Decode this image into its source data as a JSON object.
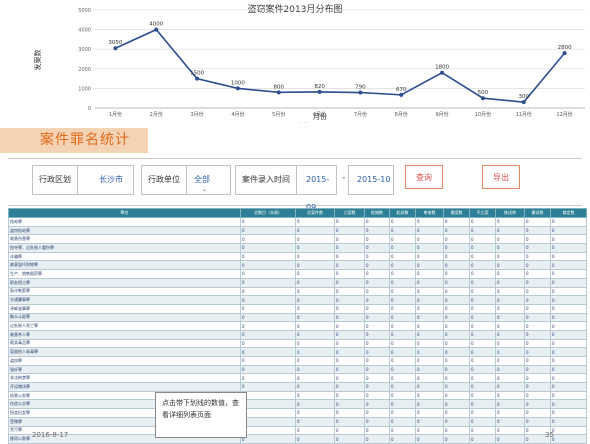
{
  "chart_data": {
    "type": "line",
    "title": "盗窃案件2013月分布图",
    "xlabel": "月份",
    "ylabel": "发案数",
    "categories": [
      "1月份",
      "2月份",
      "3月份",
      "4月份",
      "5月份",
      "6月份",
      "7月份",
      "8月份",
      "9月份",
      "10月份",
      "11月份",
      "12月份"
    ],
    "series": [
      {
        "name": "案件",
        "values": [
          3050,
          4000,
          1500,
          1000,
          800,
          820,
          790,
          670,
          1800,
          500,
          300,
          2800
        ]
      }
    ],
    "ylim": [
      0,
      5000
    ],
    "yticks": [
      0,
      1000,
      2000,
      3000,
      4000,
      5000
    ],
    "legend": "bottom-center",
    "credit": "Highcharts.com",
    "color": "#2e4d8c"
  },
  "section_title": "案件罪名统计",
  "filters": {
    "district_label": "行政区划",
    "district_value": "长沙市",
    "unit_label": "行政单位",
    "unit_value": "全部",
    "time_label": "案件录入时间",
    "start_date": "2015-09",
    "separator": "-",
    "end_date": "2015-10",
    "query_button": "查询",
    "export_button": "导出"
  },
  "table": {
    "columns": [
      "罪名",
      "总数目（本周）",
      "总案件数",
      "立案数",
      "批捕数",
      "起诉数",
      "审查数",
      "撤案数",
      "不立案",
      "移送审",
      "撤诉数",
      "裁定数"
    ],
    "rows": [
      {
        "name": "抢劫罪",
        "values": [
          "0",
          "0",
          "0",
          "0",
          "0",
          "0",
          "0",
          "0",
          "0",
          "0",
          "0"
        ]
      },
      {
        "name": "盗窃抢劫罪",
        "values": [
          "0",
          "0",
          "0",
          "0",
          "0",
          "0",
          "0",
          "0",
          "0",
          "0",
          "0"
        ]
      },
      {
        "name": "故意伤害罪",
        "values": [
          "0",
          "0",
          "0",
          "0",
          "0",
          "0",
          "0",
          "0",
          "0",
          "0",
          "0"
        ]
      },
      {
        "name": "抢夺罪、过失致人重伤罪",
        "values": [
          "0",
          "0",
          "0",
          "0",
          "0",
          "0",
          "0",
          "0",
          "0",
          "0",
          "0"
        ]
      },
      {
        "name": "诈骗罪",
        "values": [
          "0",
          "0",
          "0",
          "0",
          "0",
          "0",
          "0",
          "0",
          "0",
          "0",
          "0"
        ]
      },
      {
        "name": "故意毁坏财物罪",
        "values": [
          "0",
          "0",
          "0",
          "0",
          "0",
          "0",
          "0",
          "0",
          "0",
          "0",
          "0"
        ]
      },
      {
        "name": "生产、销售假药罪",
        "values": [
          "0",
          "0",
          "0",
          "0",
          "0",
          "0",
          "0",
          "0",
          "0",
          "0",
          "0"
        ]
      },
      {
        "name": "职务侵占罪",
        "values": [
          "0",
          "0",
          "0",
          "0",
          "0",
          "0",
          "0",
          "0",
          "0",
          "0",
          "0"
        ]
      },
      {
        "name": "敲诈勒索罪",
        "values": [
          "0",
          "0",
          "0",
          "0",
          "0",
          "0",
          "0",
          "0",
          "0",
          "0",
          "0"
        ]
      },
      {
        "name": "交通肇事罪",
        "values": [
          "0",
          "0",
          "0",
          "0",
          "0",
          "0",
          "0",
          "0",
          "0",
          "0",
          "0"
        ]
      },
      {
        "name": "寻衅滋事罪",
        "values": [
          "0",
          "0",
          "0",
          "0",
          "0",
          "0",
          "0",
          "0",
          "0",
          "0",
          "0"
        ]
      },
      {
        "name": "聚众斗殴罪",
        "values": [
          "0",
          "0",
          "0",
          "0",
          "0",
          "0",
          "0",
          "0",
          "0",
          "0",
          "0"
        ]
      },
      {
        "name": "过失致人死亡罪",
        "values": [
          "0",
          "0",
          "0",
          "0",
          "0",
          "0",
          "0",
          "0",
          "0",
          "0",
          "0"
        ]
      },
      {
        "name": "故意杀人罪",
        "values": [
          "0",
          "0",
          "0",
          "0",
          "0",
          "0",
          "0",
          "0",
          "0",
          "0",
          "0"
        ]
      },
      {
        "name": "贩卖毒品罪",
        "values": [
          "0",
          "0",
          "0",
          "0",
          "0",
          "0",
          "0",
          "0",
          "0",
          "0",
          "0"
        ]
      },
      {
        "name": "容留他人吸毒罪",
        "values": [
          "0",
          "0",
          "0",
          "0",
          "0",
          "0",
          "0",
          "0",
          "0",
          "0",
          "0"
        ]
      },
      {
        "name": "盗窃罪",
        "values": [
          "0",
          "0",
          "0",
          "0",
          "0",
          "0",
          "0",
          "0",
          "0",
          "0",
          "0"
        ]
      },
      {
        "name": "强奸罪",
        "values": [
          "0",
          "0",
          "0",
          "0",
          "0",
          "0",
          "0",
          "0",
          "0",
          "0",
          "0"
        ]
      },
      {
        "name": "非法拘禁罪",
        "values": [
          "0",
          "0",
          "0",
          "0",
          "0",
          "0",
          "0",
          "0",
          "0",
          "0",
          "0"
        ]
      },
      {
        "name": "开设赌场罪",
        "values": [
          "0",
          "0",
          "0",
          "0",
          "0",
          "0",
          "0",
          "0",
          "0",
          "0",
          "0"
        ]
      },
      {
        "name": "妨害公务罪",
        "values": [
          "0",
          "0",
          "0",
          "0",
          "0",
          "0",
          "0",
          "0",
          "0",
          "0",
          "0"
        ]
      },
      {
        "name": "伪造公文罪",
        "values": [
          "0",
          "0",
          "0",
          "0",
          "0",
          "0",
          "0",
          "0",
          "0",
          "0",
          "0"
        ]
      },
      {
        "name": "拐卖妇女罪",
        "values": [
          "0",
          "0",
          "0",
          "0",
          "0",
          "0",
          "0",
          "0",
          "0",
          "0",
          "0"
        ]
      },
      {
        "name": "受贿罪",
        "values": [
          "0",
          "0",
          "0",
          "0",
          "0",
          "0",
          "0",
          "0",
          "0",
          "0",
          "0"
        ]
      },
      {
        "name": "贪污罪",
        "values": [
          "0",
          "0",
          "0",
          "0",
          "0",
          "0",
          "0",
          "0",
          "0",
          "0",
          "0"
        ]
      },
      {
        "name": "挪用公款罪",
        "values": [
          "0",
          "0",
          "0",
          "0",
          "0",
          "0",
          "0",
          "0",
          "0",
          "0",
          "0"
        ]
      }
    ]
  },
  "note": "点击带下划线的数值，查看详细列表页面",
  "footer": {
    "date": "2016-8-17",
    "page": "35"
  }
}
